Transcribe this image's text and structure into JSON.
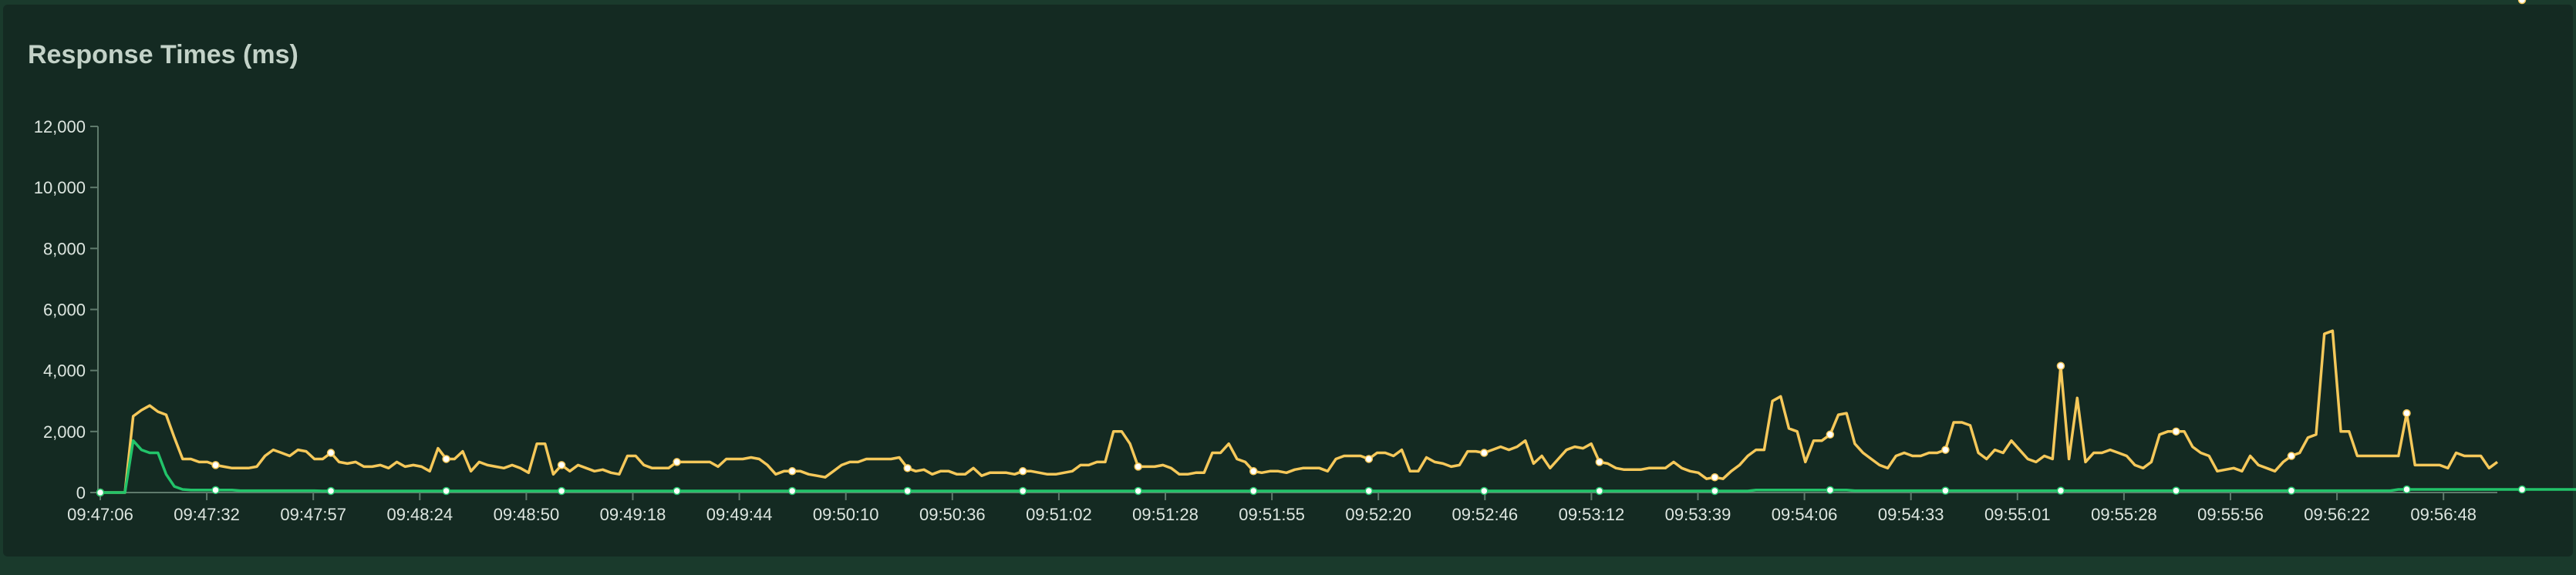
{
  "panel": {
    "title": "Response Times (ms)"
  },
  "chart_data": {
    "type": "line",
    "title": "Response Times (ms)",
    "xlabel": "",
    "ylabel": "",
    "ylim": [
      0,
      12000
    ],
    "y_ticks": [
      0,
      2000,
      4000,
      6000,
      8000,
      10000,
      12000
    ],
    "y_tick_labels": [
      "0",
      "2,000",
      "4,000",
      "6,000",
      "8,000",
      "10,000",
      "12,000"
    ],
    "x_tick_labels": [
      "09:47:06",
      "09:47:32",
      "09:47:57",
      "09:48:24",
      "09:48:50",
      "09:49:18",
      "09:49:44",
      "09:50:10",
      "09:50:36",
      "09:51:02",
      "09:51:28",
      "09:51:55",
      "09:52:20",
      "09:52:46",
      "09:53:12",
      "09:53:39",
      "09:54:06",
      "09:54:33",
      "09:55:01",
      "09:55:28",
      "09:55:56",
      "09:56:22",
      "09:56:48"
    ],
    "grid": false,
    "series": [
      {
        "color": "#f5c85a",
        "values": [
          0,
          0,
          0,
          0,
          2500,
          2700,
          2850,
          2650,
          2550,
          1800,
          1100,
          1100,
          1000,
          1000,
          900,
          850,
          800,
          800,
          800,
          850,
          1200,
          1400,
          1300,
          1200,
          1400,
          1350,
          1100,
          1100,
          1300,
          1000,
          950,
          1000,
          850,
          850,
          900,
          800,
          1000,
          850,
          900,
          850,
          700,
          1450,
          1100,
          1100,
          1350,
          700,
          1000,
          900,
          850,
          800,
          900,
          800,
          650,
          1600,
          1600,
          600,
          900,
          700,
          900,
          800,
          700,
          750,
          650,
          600,
          1200,
          1200,
          900,
          800,
          800,
          800,
          1000,
          1000,
          1000,
          1000,
          1000,
          850,
          1100,
          1100,
          1100,
          1150,
          1100,
          900,
          600,
          700,
          700,
          700,
          600,
          550,
          500,
          700,
          900,
          1000,
          1000,
          1100,
          1100,
          1100,
          1100,
          1150,
          800,
          700,
          750,
          600,
          700,
          700,
          600,
          600,
          800,
          550,
          650,
          650,
          650,
          600,
          700,
          700,
          650,
          600,
          600,
          650,
          700,
          900,
          900,
          1000,
          1000,
          2000,
          2000,
          1600,
          850,
          850,
          850,
          900,
          800,
          600,
          600,
          650,
          650,
          1300,
          1300,
          1600,
          1100,
          1000,
          700,
          650,
          700,
          700,
          650,
          750,
          800,
          800,
          800,
          700,
          1100,
          1200,
          1200,
          1200,
          1100,
          1300,
          1300,
          1200,
          1400,
          700,
          700,
          1150,
          1000,
          950,
          850,
          900,
          1350,
          1350,
          1300,
          1400,
          1500,
          1400,
          1500,
          1700,
          950,
          1200,
          800,
          1100,
          1400,
          1500,
          1450,
          1600,
          1000,
          950,
          800,
          750,
          750,
          750,
          800,
          800,
          800,
          1000,
          800,
          700,
          650,
          450,
          500,
          450,
          700,
          900,
          1200,
          1400,
          1400,
          3000,
          3150,
          2100,
          2000,
          1000,
          1700,
          1700,
          1900,
          2550,
          2600,
          1600,
          1300,
          1100,
          900,
          800,
          1200,
          1300,
          1200,
          1200,
          1300,
          1300,
          1400,
          2300,
          2300,
          2200,
          1300,
          1100,
          1400,
          1300,
          1700,
          1400,
          1100,
          1000,
          1200,
          1100,
          4150,
          1100,
          3100,
          1000,
          1300,
          1300,
          1400,
          1300,
          1200,
          900,
          800,
          1000,
          1900,
          2000,
          2000,
          2000,
          1500,
          1300,
          1200,
          700,
          750,
          800,
          700,
          1200,
          900,
          800,
          700,
          1000,
          1200,
          1300,
          1800,
          1900,
          5200,
          5300,
          2000,
          2000,
          1200,
          1200,
          1200,
          1200,
          1200,
          1200,
          2600,
          900,
          900,
          900,
          900,
          800,
          1300,
          1200,
          1200,
          1200,
          800,
          1000
        ],
        "markers": [
          0,
          14,
          28,
          42,
          56,
          70,
          84,
          98,
          112,
          126,
          140,
          154,
          168,
          182,
          196,
          210,
          224,
          238,
          252,
          266,
          280,
          294,
          308
        ]
      },
      {
        "color": "#22c46a",
        "values": [
          0,
          0,
          0,
          0,
          1700,
          1400,
          1300,
          1300,
          600,
          200,
          100,
          80,
          80,
          80,
          80,
          80,
          80,
          60,
          60,
          60,
          60,
          60,
          60,
          60,
          60,
          60,
          60,
          50,
          50,
          50,
          50,
          50,
          50,
          50,
          50,
          50,
          50,
          50,
          50,
          50,
          50,
          50,
          50,
          50,
          50,
          50,
          50,
          50,
          50,
          50,
          50,
          50,
          50,
          50,
          50,
          50,
          50,
          50,
          50,
          50,
          50,
          50,
          50,
          50,
          50,
          50,
          50,
          50,
          50,
          50,
          50,
          50,
          50,
          50,
          50,
          50,
          50,
          50,
          50,
          50,
          50,
          50,
          50,
          50,
          50,
          50,
          50,
          50,
          50,
          50,
          50,
          50,
          50,
          50,
          50,
          50,
          50,
          50,
          50,
          50,
          50,
          50,
          50,
          50,
          50,
          50,
          50,
          50,
          50,
          50,
          50,
          50,
          50,
          50,
          50,
          50,
          50,
          50,
          50,
          50,
          50,
          50,
          50,
          50,
          50,
          50,
          50,
          50,
          50,
          50,
          50,
          50,
          50,
          50,
          50,
          50,
          50,
          50,
          50,
          50,
          50,
          50,
          50,
          50,
          50,
          50,
          50,
          50,
          50,
          50,
          50,
          50,
          50,
          50,
          50,
          50,
          50,
          50,
          50,
          50,
          50,
          50,
          50,
          50,
          50,
          50,
          50,
          50,
          50,
          50,
          50,
          50,
          50,
          50,
          50,
          50,
          50,
          50,
          50,
          50,
          50,
          50,
          50,
          50,
          50,
          50,
          50,
          50,
          50,
          50,
          50,
          50,
          50,
          50,
          50,
          50,
          50,
          50,
          50,
          50,
          50,
          80,
          80,
          80,
          80,
          80,
          80,
          80,
          80,
          80,
          80,
          80,
          80,
          60,
          60,
          60,
          60,
          60,
          60,
          60,
          60,
          60,
          60,
          60,
          60,
          60,
          60,
          60,
          60,
          60,
          60,
          60,
          60,
          60,
          60,
          60,
          60,
          60,
          60,
          60,
          60,
          60,
          60,
          60,
          60,
          60,
          60,
          60,
          60,
          60,
          60,
          60,
          60,
          60,
          60,
          60,
          60,
          60,
          60,
          60,
          60,
          60,
          60,
          60,
          60,
          60,
          60,
          60,
          60,
          60,
          60,
          60,
          60,
          60,
          60,
          60,
          60,
          60,
          60,
          100,
          100,
          100,
          100,
          100,
          100,
          100,
          100,
          100,
          100,
          100,
          100,
          100,
          100,
          100,
          100,
          100,
          100,
          100,
          100,
          100,
          100,
          100,
          100,
          100,
          100,
          100,
          80
        ],
        "markers": [
          0,
          14,
          28,
          42,
          56,
          70,
          84,
          98,
          112,
          126,
          140,
          154,
          168,
          182,
          196,
          210,
          224,
          238,
          252,
          266,
          280,
          294,
          308
        ]
      }
    ]
  }
}
